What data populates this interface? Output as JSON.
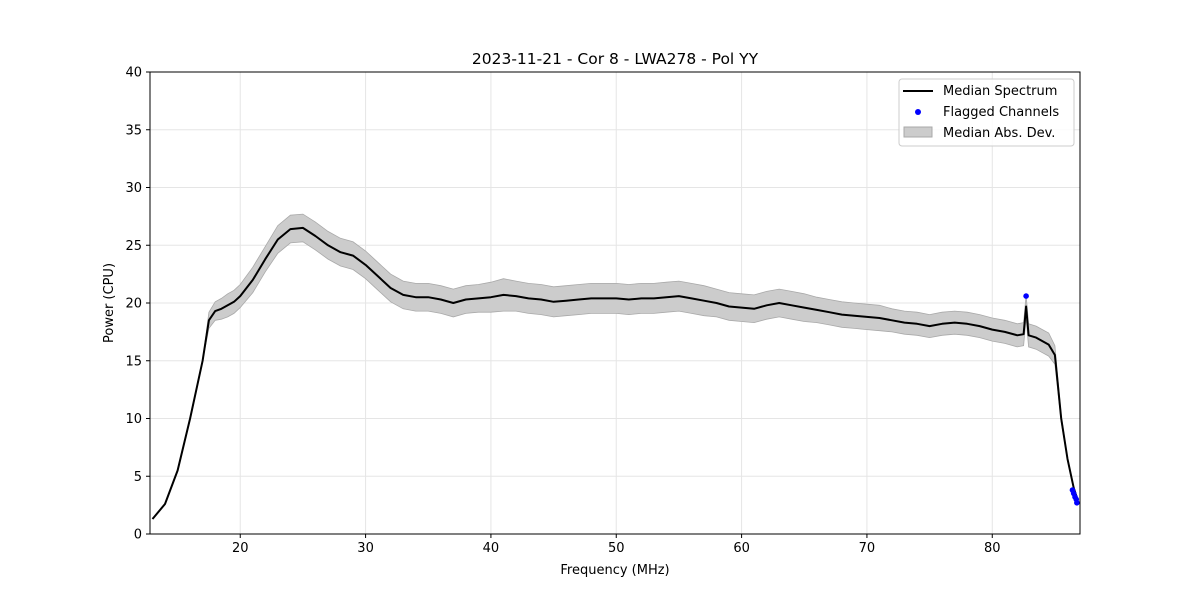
{
  "chart_data": {
    "type": "line",
    "title": "2023-11-21 - Cor 8 - LWA278 - Pol YY",
    "xlabel": "Frequency (MHz)",
    "ylabel": "Power (CPU)",
    "xlim": [
      12.8,
      87.0
    ],
    "ylim": [
      0,
      40
    ],
    "xticks": [
      20,
      30,
      40,
      50,
      60,
      70,
      80
    ],
    "yticks": [
      0,
      5,
      10,
      15,
      20,
      25,
      30,
      35,
      40
    ],
    "grid": true,
    "legend_position": "top-right",
    "legend": [
      "Median Spectrum",
      "Flagged Channels",
      "Median Abs. Dev."
    ],
    "colors": {
      "median": "#000000",
      "flagged": "#0000ff",
      "band_fill": "#cccccc",
      "band_edge": "#a9a9a9"
    },
    "series": [
      {
        "name": "Median Spectrum",
        "x": [
          13.0,
          14.0,
          15.0,
          16.0,
          17.0,
          17.5,
          18.0,
          18.5,
          19.0,
          19.5,
          20.0,
          21.0,
          22.0,
          23.0,
          24.0,
          25.0,
          26.0,
          27.0,
          28.0,
          29.0,
          30.0,
          31.0,
          32.0,
          33.0,
          34.0,
          35.0,
          36.0,
          37.0,
          38.0,
          39.0,
          40.0,
          41.0,
          42.0,
          43.0,
          44.0,
          45.0,
          46.0,
          47.0,
          48.0,
          49.0,
          50.0,
          51.0,
          52.0,
          53.0,
          54.0,
          55.0,
          56.0,
          57.0,
          58.0,
          59.0,
          60.0,
          61.0,
          62.0,
          63.0,
          64.0,
          65.0,
          66.0,
          67.0,
          68.0,
          69.0,
          70.0,
          71.0,
          72.0,
          73.0,
          74.0,
          75.0,
          76.0,
          77.0,
          78.0,
          79.0,
          80.0,
          81.0,
          82.0,
          82.5,
          82.7,
          82.9,
          83.5,
          84.0,
          84.5,
          85.0,
          85.5,
          86.0,
          86.5,
          86.8
        ],
        "values": [
          1.3,
          2.6,
          5.5,
          10.0,
          15.0,
          18.5,
          19.3,
          19.5,
          19.8,
          20.1,
          20.6,
          22.0,
          23.8,
          25.5,
          26.4,
          26.5,
          25.8,
          25.0,
          24.4,
          24.1,
          23.3,
          22.3,
          21.3,
          20.7,
          20.5,
          20.5,
          20.3,
          20.0,
          20.3,
          20.4,
          20.5,
          20.7,
          20.6,
          20.4,
          20.3,
          20.1,
          20.2,
          20.3,
          20.4,
          20.4,
          20.4,
          20.3,
          20.4,
          20.4,
          20.5,
          20.6,
          20.4,
          20.2,
          20.0,
          19.7,
          19.6,
          19.5,
          19.8,
          20.0,
          19.8,
          19.6,
          19.4,
          19.2,
          19.0,
          18.9,
          18.8,
          18.7,
          18.5,
          18.3,
          18.2,
          18.0,
          18.2,
          18.3,
          18.2,
          18.0,
          17.7,
          17.5,
          17.2,
          17.3,
          19.7,
          17.2,
          17.0,
          16.7,
          16.4,
          15.5,
          10.0,
          6.5,
          4.0,
          3.0
        ],
        "mad": [
          0,
          0,
          0,
          0,
          0,
          0.7,
          0.8,
          0.9,
          1.0,
          1.0,
          1.0,
          1.1,
          1.1,
          1.2,
          1.2,
          1.2,
          1.2,
          1.2,
          1.2,
          1.2,
          1.2,
          1.2,
          1.2,
          1.2,
          1.2,
          1.2,
          1.2,
          1.2,
          1.2,
          1.2,
          1.3,
          1.4,
          1.3,
          1.3,
          1.3,
          1.3,
          1.3,
          1.3,
          1.3,
          1.3,
          1.3,
          1.3,
          1.3,
          1.3,
          1.3,
          1.3,
          1.3,
          1.3,
          1.2,
          1.2,
          1.2,
          1.2,
          1.2,
          1.2,
          1.2,
          1.2,
          1.1,
          1.1,
          1.1,
          1.1,
          1.1,
          1.1,
          1.0,
          1.0,
          1.0,
          1.0,
          1.0,
          1.0,
          1.0,
          1.0,
          1.0,
          1.0,
          1.0,
          1.0,
          1.0,
          1.0,
          1.0,
          1.0,
          1.0,
          0.8,
          0.3,
          0.1,
          0,
          0
        ]
      },
      {
        "name": "Flagged Channels",
        "x": [
          82.7,
          86.4,
          86.5,
          86.6,
          86.7,
          86.75
        ],
        "values": [
          20.6,
          3.8,
          3.5,
          3.2,
          3.0,
          2.7
        ]
      }
    ]
  }
}
